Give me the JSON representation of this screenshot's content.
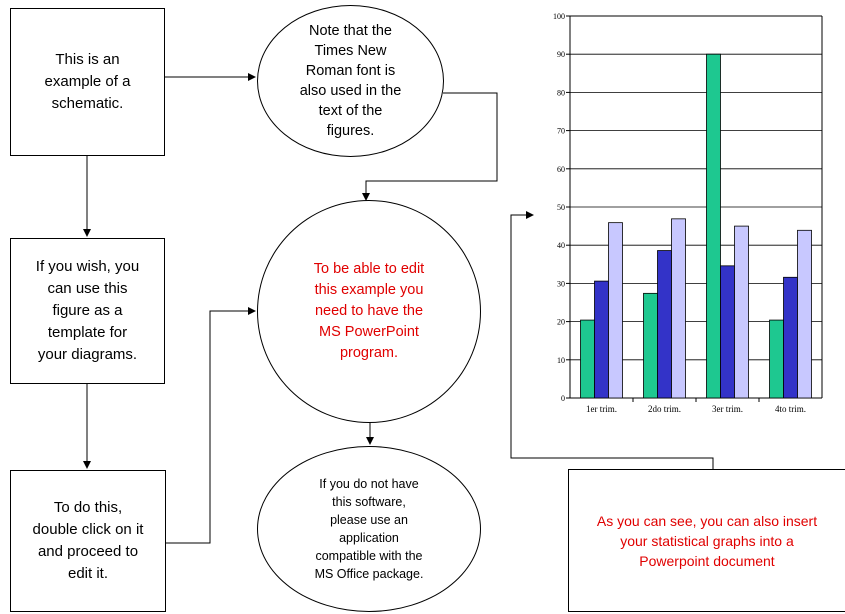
{
  "diagram": {
    "box_schematic": "This is an\nexample of a\nschematic.",
    "note_font": "Note that the\nTimes New\nRoman font is\nalso used in the\ntext of the\nfigures.",
    "box_template": "If you wish, you\ncan use this\nfigure as a\ntemplate for\nyour diagrams.",
    "circle_edit": "To be able to edit\nthis example you\nneed to have the\nMS PowerPoint\nprogram.",
    "box_double_click": "To do this,\ndouble click on it\nand proceed to\nedit it.",
    "circle_software": "If you do not have\nthis software,\nplease use an\napplication\ncompatible with the\nMS Office package.",
    "box_graphs": "As you can see, you can also insert\nyour statistical graphs into a\nPowerpoint document",
    "accent_color": "#e00000"
  },
  "chart_data": {
    "type": "bar",
    "categories": [
      "1er trim.",
      "2do trim.",
      "3er trim.",
      "4to trim."
    ],
    "series": [
      {
        "color": "#1ec890",
        "values": [
          20.4,
          27.4,
          90,
          20.4
        ]
      },
      {
        "color": "#3333c8",
        "values": [
          30.6,
          38.6,
          34.6,
          31.6
        ]
      },
      {
        "color": "#c8c8ff",
        "values": [
          45.9,
          46.9,
          45,
          43.9
        ]
      }
    ],
    "ylim": [
      0,
      100
    ],
    "yticks": [
      "0",
      "10",
      "20",
      "30",
      "40",
      "50",
      "60",
      "70",
      "80",
      "90",
      "100"
    ],
    "grid": true,
    "legend": "none"
  }
}
